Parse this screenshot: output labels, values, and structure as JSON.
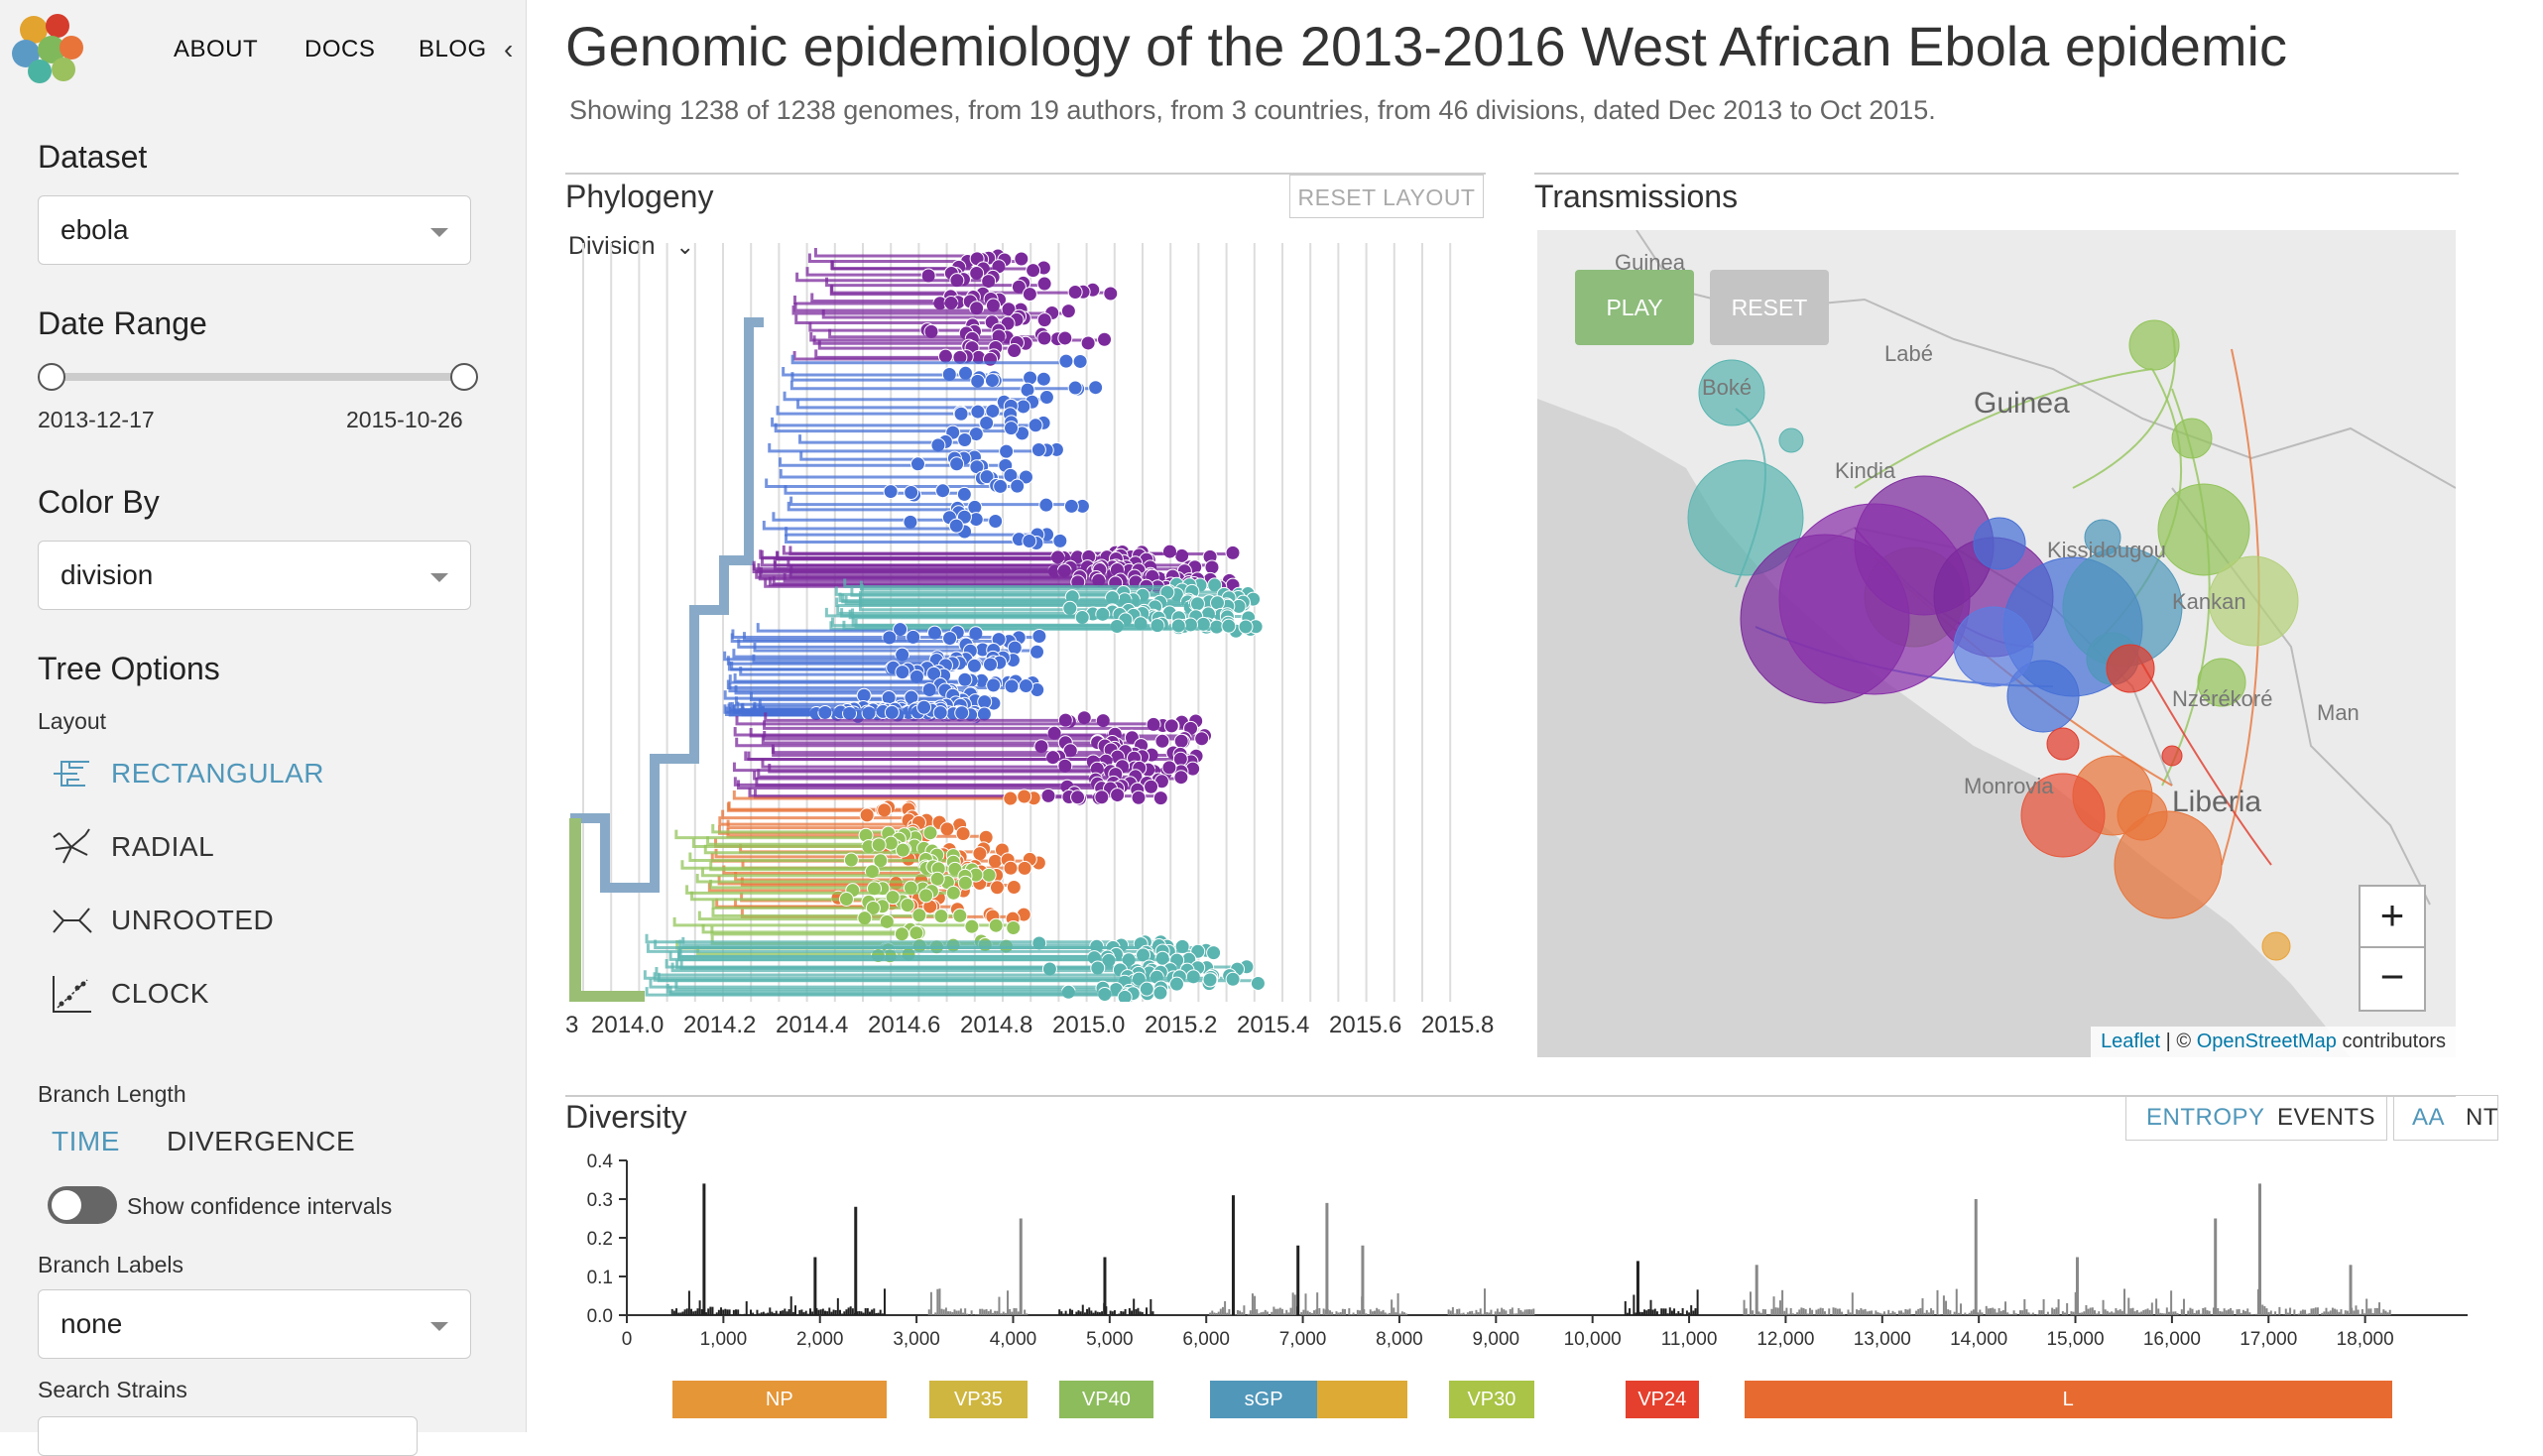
{
  "nav": {
    "about": "ABOUT",
    "docs": "DOCS",
    "blog": "BLOG",
    "collapse": "‹"
  },
  "sidebar": {
    "dataset": {
      "title": "Dataset",
      "value": "ebola"
    },
    "date_range": {
      "title": "Date Range",
      "start": "2013-12-17",
      "end": "2015-10-26"
    },
    "color_by": {
      "title": "Color By",
      "value": "division"
    },
    "tree_options": {
      "title": "Tree Options",
      "layout_label": "Layout",
      "layouts": [
        {
          "label": "RECTANGULAR",
          "icon": "rectangular-layout-icon",
          "active": true
        },
        {
          "label": "RADIAL",
          "icon": "radial-layout-icon",
          "active": false
        },
        {
          "label": "UNROOTED",
          "icon": "unrooted-layout-icon",
          "active": false
        },
        {
          "label": "CLOCK",
          "icon": "clock-layout-icon",
          "active": false
        }
      ]
    },
    "branch_length": {
      "label": "Branch Length",
      "time": "TIME",
      "divergence": "DIVERGENCE",
      "active": "TIME"
    },
    "confidence": {
      "label": "Show confidence intervals",
      "enabled": false
    },
    "branch_labels": {
      "label": "Branch Labels",
      "value": "none"
    },
    "search": {
      "label": "Search Strains"
    }
  },
  "header": {
    "title": "Genomic epidemiology of the 2013-2016 West African Ebola epidemic",
    "subtitle": "Showing 1238 of 1238 genomes, from 19 authors, from 3 countries, from 46 divisions, dated Dec 2013 to Oct 2015."
  },
  "phylogeny": {
    "title": "Phylogeny",
    "reset": "RESET LAYOUT",
    "dropdown": "Division",
    "axis_ticks": [
      "3",
      "2014.0",
      "2014.2",
      "2014.4",
      "2014.6",
      "2014.8",
      "2015.0",
      "2015.2",
      "2015.4",
      "2015.6",
      "2015.8"
    ]
  },
  "transmissions": {
    "title": "Transmissions",
    "play": "PLAY",
    "reset": "RESET",
    "zoom_in": "+",
    "zoom_out": "−",
    "attribution": {
      "leaflet": "Leaflet",
      "sep": " | © ",
      "osm": "OpenStreetMap",
      "suffix": " contributors"
    },
    "labels": [
      "Guinea",
      "Labé",
      "Boké",
      "Kindia",
      "Guinea",
      "Kissidougou",
      "Kankan",
      "Nzérékoré",
      "Man",
      "Liberia",
      "Monrovia"
    ]
  },
  "diversity": {
    "title": "Diversity",
    "entropy": "ENTROPY",
    "events": "EVENTS",
    "aa": "AA",
    "nt": "NT",
    "y_ticks": [
      "0.0",
      "0.1",
      "0.2",
      "0.3",
      "0.4"
    ],
    "x_ticks": [
      "0",
      "1,000",
      "2,000",
      "3,000",
      "4,000",
      "5,000",
      "6,000",
      "7,000",
      "8,000",
      "9,000",
      "10,000",
      "11,000",
      "12,000",
      "13,000",
      "14,000",
      "15,000",
      "16,000",
      "17,000",
      "18,000"
    ],
    "genes": [
      {
        "name": "NP",
        "start": 470,
        "end": 2690,
        "color": "#e59637"
      },
      {
        "name": "VP35",
        "start": 3130,
        "end": 4150,
        "color": "#cfb640"
      },
      {
        "name": "VP40",
        "start": 4480,
        "end": 5450,
        "color": "#8dbc5c"
      },
      {
        "name": "sGP",
        "start": 6040,
        "end": 7150,
        "color": "#5097ba"
      },
      {
        "name": "",
        "start": 7150,
        "end": 8080,
        "color": "#dcaa35"
      },
      {
        "name": "VP30",
        "start": 8510,
        "end": 9400,
        "color": "#a9c446"
      },
      {
        "name": "VP24",
        "start": 10340,
        "end": 11100,
        "color": "#e5402d"
      },
      {
        "name": "L",
        "start": 11570,
        "end": 18280,
        "color": "#e76b30"
      }
    ]
  },
  "colors": {
    "accent": "#5097ba",
    "purple": "#7b2a9c",
    "blue": "#4770d6",
    "teal": "#5ab4b0",
    "green": "#93c45a",
    "orange": "#e8743a",
    "red": "#e03a2b"
  }
}
